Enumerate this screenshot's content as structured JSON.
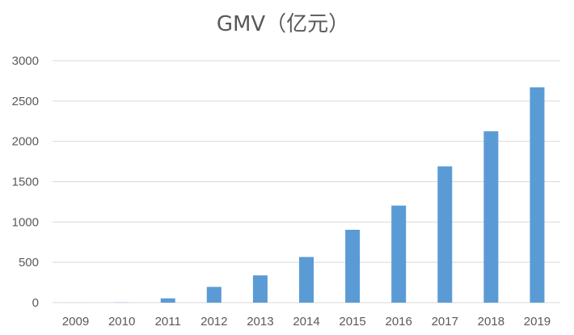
{
  "chart_data": {
    "type": "bar",
    "title": "GMV（亿元）",
    "xlabel": "",
    "ylabel": "",
    "categories": [
      "2009",
      "2010",
      "2011",
      "2012",
      "2013",
      "2014",
      "2015",
      "2016",
      "2017",
      "2018",
      "2019"
    ],
    "values": [
      0.5,
      2,
      53,
      195,
      338,
      566,
      903,
      1203,
      1690,
      2125,
      2670
    ],
    "ylim": [
      0,
      3000
    ],
    "yticks": [
      0,
      500,
      1000,
      1500,
      2000,
      2500,
      3000
    ],
    "grid": true,
    "legend": "none",
    "bar_color": "#5b9bd5"
  }
}
